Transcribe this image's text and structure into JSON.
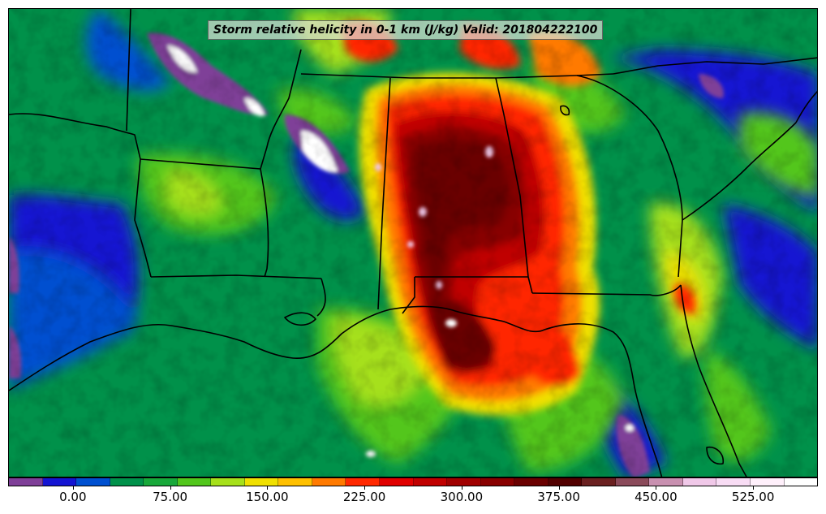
{
  "title": "Storm relative helicity in 0-1 km (J/kg) Valid: 201804222100",
  "colorbar": {
    "colors": [
      "#7f3f98",
      "#1414d2",
      "#0050d0",
      "#00914a",
      "#18a83a",
      "#52c61c",
      "#a6e01a",
      "#f0e000",
      "#ffc000",
      "#ff7a00",
      "#ff2800",
      "#e00000",
      "#c00000",
      "#a00000",
      "#880000",
      "#6a0000",
      "#520000",
      "#6a2020",
      "#8a4a5a",
      "#c890b0",
      "#f0c8e8",
      "#f8dcf4",
      "#fff0fb",
      "#ffffff"
    ],
    "tick_labels": [
      "0.00",
      "75.00",
      "150.00",
      "225.00",
      "300.00",
      "375.00",
      "450.00",
      "525.00"
    ],
    "tick_values": [
      0,
      75,
      150,
      225,
      300,
      375,
      450,
      525
    ],
    "min": -50,
    "max": 575
  },
  "map": {
    "background_color": "#00914a",
    "field_colors": {
      "ocean_low": "#1414d2",
      "ocean_mid": "#0050d0",
      "green": "#00914a",
      "light_green": "#52c61c",
      "yellow_green": "#a6e01a",
      "yellow": "#f0e000",
      "orange": "#ff7a00",
      "red": "#ff2800",
      "dark_red": "#a00000",
      "maroon": "#6a0000",
      "purple": "#7f3f98",
      "white": "#ffffff"
    }
  }
}
